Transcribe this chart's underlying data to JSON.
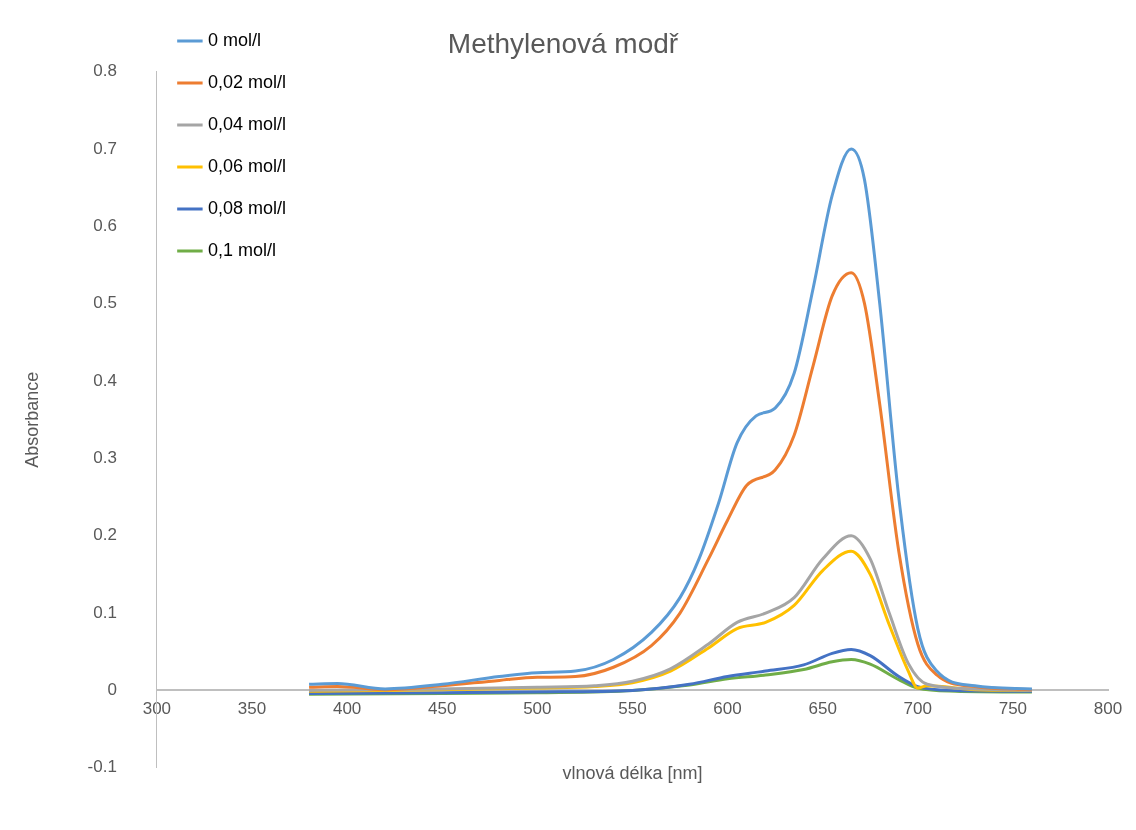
{
  "chart_data": {
    "type": "line",
    "title": "Methylenová modř",
    "xlabel": "vlnová délka [nm]",
    "ylabel": "Absorbance",
    "xlim": [
      300,
      800
    ],
    "xticks": [
      300,
      350,
      400,
      450,
      500,
      550,
      600,
      650,
      700,
      750,
      800
    ],
    "ylim": [
      -0.1,
      0.8
    ],
    "yticks": [
      -0.1,
      0,
      0.1,
      0.2,
      0.3,
      0.4,
      0.5,
      0.6,
      0.7,
      0.8
    ],
    "grid": false,
    "legend": "top left",
    "marker": "none",
    "line_style": "solid",
    "series": [
      {
        "name": "0 mol/l",
        "color": "#5b9bd5",
        "x": [
          380,
          395,
          420,
          450,
          480,
          500,
          520,
          540,
          560,
          575,
          585,
          595,
          605,
          615,
          625,
          635,
          645,
          655,
          665,
          672,
          680,
          690,
          700,
          710,
          730,
          760
        ],
        "values": [
          0.008,
          0.009,
          0.002,
          0.008,
          0.018,
          0.023,
          0.025,
          0.04,
          0.075,
          0.12,
          0.17,
          0.24,
          0.32,
          0.355,
          0.365,
          0.41,
          0.52,
          0.64,
          0.7,
          0.66,
          0.5,
          0.25,
          0.08,
          0.025,
          0.006,
          0.002
        ]
      },
      {
        "name": "0,02 mol/l",
        "color": "#ed7d31",
        "x": [
          380,
          395,
          420,
          450,
          480,
          500,
          520,
          540,
          560,
          575,
          590,
          600,
          610,
          625,
          635,
          645,
          655,
          665,
          672,
          680,
          690,
          700,
          710,
          730,
          760
        ],
        "values": [
          0.004,
          0.005,
          0.001,
          0.006,
          0.013,
          0.017,
          0.018,
          0.03,
          0.058,
          0.1,
          0.17,
          0.22,
          0.265,
          0.285,
          0.33,
          0.42,
          0.51,
          0.54,
          0.5,
          0.37,
          0.18,
          0.06,
          0.02,
          0.005,
          0.001
        ]
      },
      {
        "name": "0,04 mol/l",
        "color": "#a5a5a5",
        "x": [
          380,
          450,
          500,
          530,
          550,
          570,
          590,
          605,
          620,
          635,
          650,
          665,
          675,
          685,
          695,
          705,
          730,
          760
        ],
        "values": [
          0.0,
          0.002,
          0.004,
          0.006,
          0.012,
          0.028,
          0.06,
          0.088,
          0.1,
          0.12,
          0.17,
          0.2,
          0.17,
          0.1,
          0.035,
          0.008,
          0.002,
          0.0
        ]
      },
      {
        "name": "0,06 mol/l",
        "color": "#ffc000",
        "x": [
          380,
          450,
          500,
          530,
          550,
          570,
          590,
          605,
          620,
          635,
          650,
          665,
          675,
          685,
          695,
          700,
          705,
          730,
          760
        ],
        "values": [
          -0.001,
          0.001,
          0.003,
          0.005,
          0.01,
          0.025,
          0.055,
          0.08,
          0.088,
          0.11,
          0.155,
          0.18,
          0.15,
          0.085,
          0.025,
          0.003,
          0.006,
          0.001,
          0.0
        ]
      },
      {
        "name": "0,08 mol/l",
        "color": "#4472c4",
        "x": [
          380,
          450,
          500,
          550,
          580,
          600,
          620,
          640,
          655,
          665,
          675,
          690,
          700,
          720,
          760
        ],
        "values": [
          -0.004,
          -0.003,
          -0.002,
          0.0,
          0.008,
          0.018,
          0.025,
          0.033,
          0.048,
          0.053,
          0.045,
          0.018,
          0.005,
          0.0,
          -0.001
        ]
      },
      {
        "name": "0,1 mol/l",
        "color": "#70ad47",
        "x": [
          380,
          450,
          500,
          550,
          580,
          600,
          620,
          640,
          655,
          665,
          675,
          690,
          700,
          720,
          760
        ],
        "values": [
          -0.005,
          -0.004,
          -0.003,
          0.0,
          0.007,
          0.015,
          0.02,
          0.027,
          0.037,
          0.04,
          0.034,
          0.014,
          0.003,
          -0.001,
          -0.002
        ]
      }
    ]
  }
}
